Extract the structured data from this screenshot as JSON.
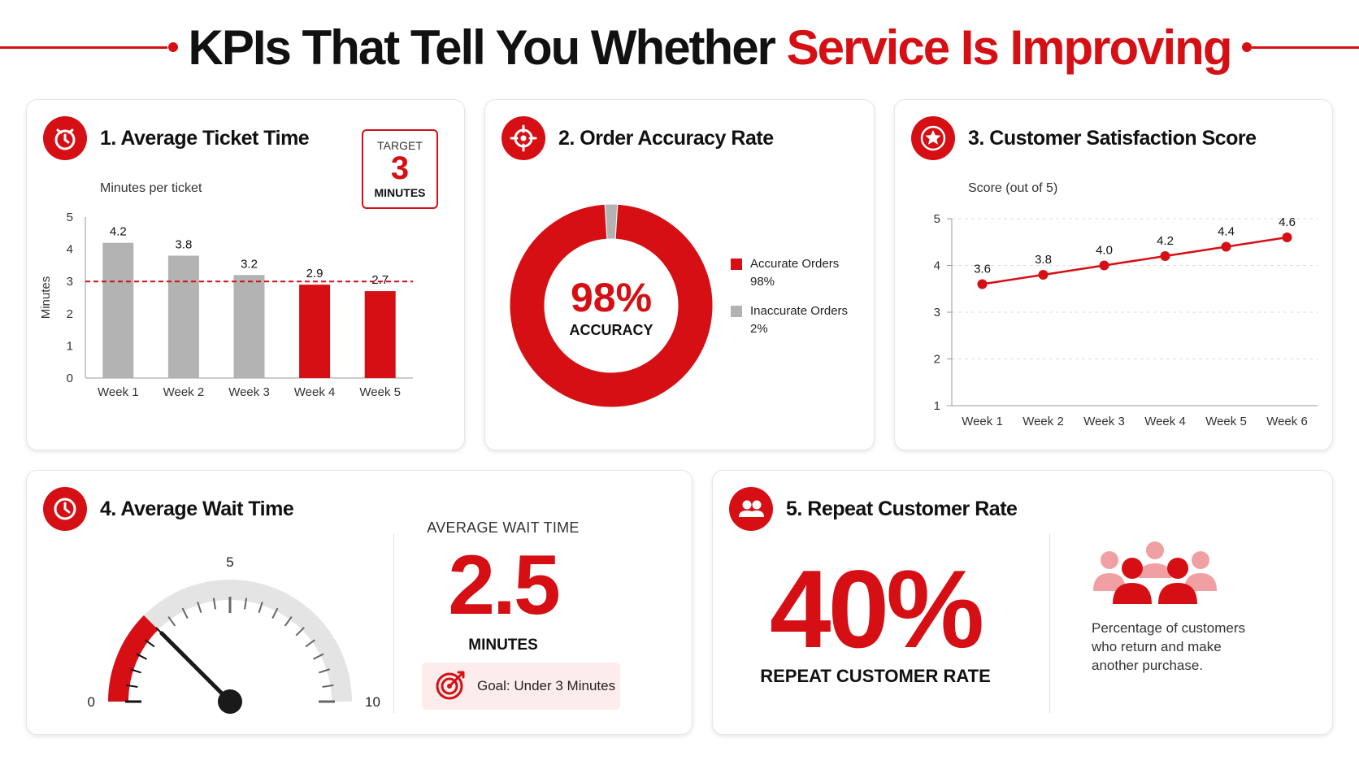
{
  "page": {
    "title_main": "KPIs That Tell You Whether ",
    "title_accent": "Service Is Improving"
  },
  "colors": {
    "accent": "#d50f14",
    "gray": "#b3b3b3",
    "light_red": "#f0a0a2"
  },
  "cards": {
    "ticket": {
      "title": "1. Average Ticket Time",
      "icon": "stopwatch-icon",
      "subtitle": "Minutes per ticket",
      "target_label": "TARGET",
      "target_value": "3",
      "target_unit": "MINUTES"
    },
    "accuracy": {
      "title": "2. Order Accuracy Rate",
      "icon": "target-crosshair-icon",
      "center_value": "98%",
      "center_label": "ACCURACY",
      "legend": [
        {
          "label": "Accurate Orders",
          "value": "98%",
          "color": "#d50f14"
        },
        {
          "label": "Inaccurate Orders",
          "value": "2%",
          "color": "#b3b3b3"
        }
      ]
    },
    "satisfaction": {
      "title": "3. Customer Satisfaction Score",
      "icon": "star-icon",
      "subtitle": "Score (out of 5)"
    },
    "wait": {
      "title": "4. Average Wait Time",
      "icon": "clock-icon",
      "label": "AVERAGE WAIT TIME",
      "value": "2.5",
      "unit": "MINUTES",
      "goal": "Goal: Under 3 Minutes",
      "goal_icon": "target-arrow-icon"
    },
    "repeat": {
      "title": "5. Repeat Customer Rate",
      "icon": "users-icon",
      "value": "40%",
      "label": "REPEAT CUSTOMER RATE",
      "description": "Percentage of customers who return and make another purchase.",
      "illustration_icon": "customer-group-icon"
    }
  },
  "chart_data": [
    {
      "type": "bar",
      "title": "1. Average Ticket Time",
      "ylabel": "Minutes",
      "categories": [
        "Week 1",
        "Week 2",
        "Week 3",
        "Week 4",
        "Week 5"
      ],
      "values": [
        4.2,
        3.8,
        3.2,
        2.9,
        2.7
      ],
      "value_labels": [
        "4.2",
        "3.8",
        "3.2",
        "2.9",
        "2.7"
      ],
      "bar_colors": [
        "#b3b3b3",
        "#b3b3b3",
        "#b3b3b3",
        "#d50f14",
        "#d50f14"
      ],
      "ylim": [
        0,
        5
      ],
      "yticks": [
        "0",
        "1",
        "2",
        "3",
        "4",
        "5"
      ],
      "target_line": 3,
      "grid": false
    },
    {
      "type": "pie",
      "title": "2. Order Accuracy Rate",
      "labels": [
        "Accurate Orders",
        "Inaccurate Orders"
      ],
      "values": [
        98,
        2
      ],
      "colors": [
        "#d50f14",
        "#b3b3b3"
      ],
      "donut": true
    },
    {
      "type": "line",
      "title": "3. Customer Satisfaction Score",
      "categories": [
        "Week 1",
        "Week 2",
        "Week 3",
        "Week 4",
        "Week 5",
        "Week 6"
      ],
      "values": [
        3.6,
        3.8,
        4.0,
        4.2,
        4.4,
        4.6
      ],
      "value_labels": [
        "3.6",
        "3.8",
        "4.0",
        "4.2",
        "4.4",
        "4.6"
      ],
      "ylim": [
        1,
        5
      ],
      "yticks": [
        "1",
        "2",
        "3",
        "4",
        "5"
      ],
      "grid": true,
      "color": "#d50f14"
    },
    {
      "type": "gauge",
      "title": "4. Average Wait Time",
      "min": 0,
      "max": 10,
      "value": 2.5,
      "tick_labels": [
        "0",
        "5",
        "10"
      ],
      "color": "#d50f14"
    }
  ]
}
